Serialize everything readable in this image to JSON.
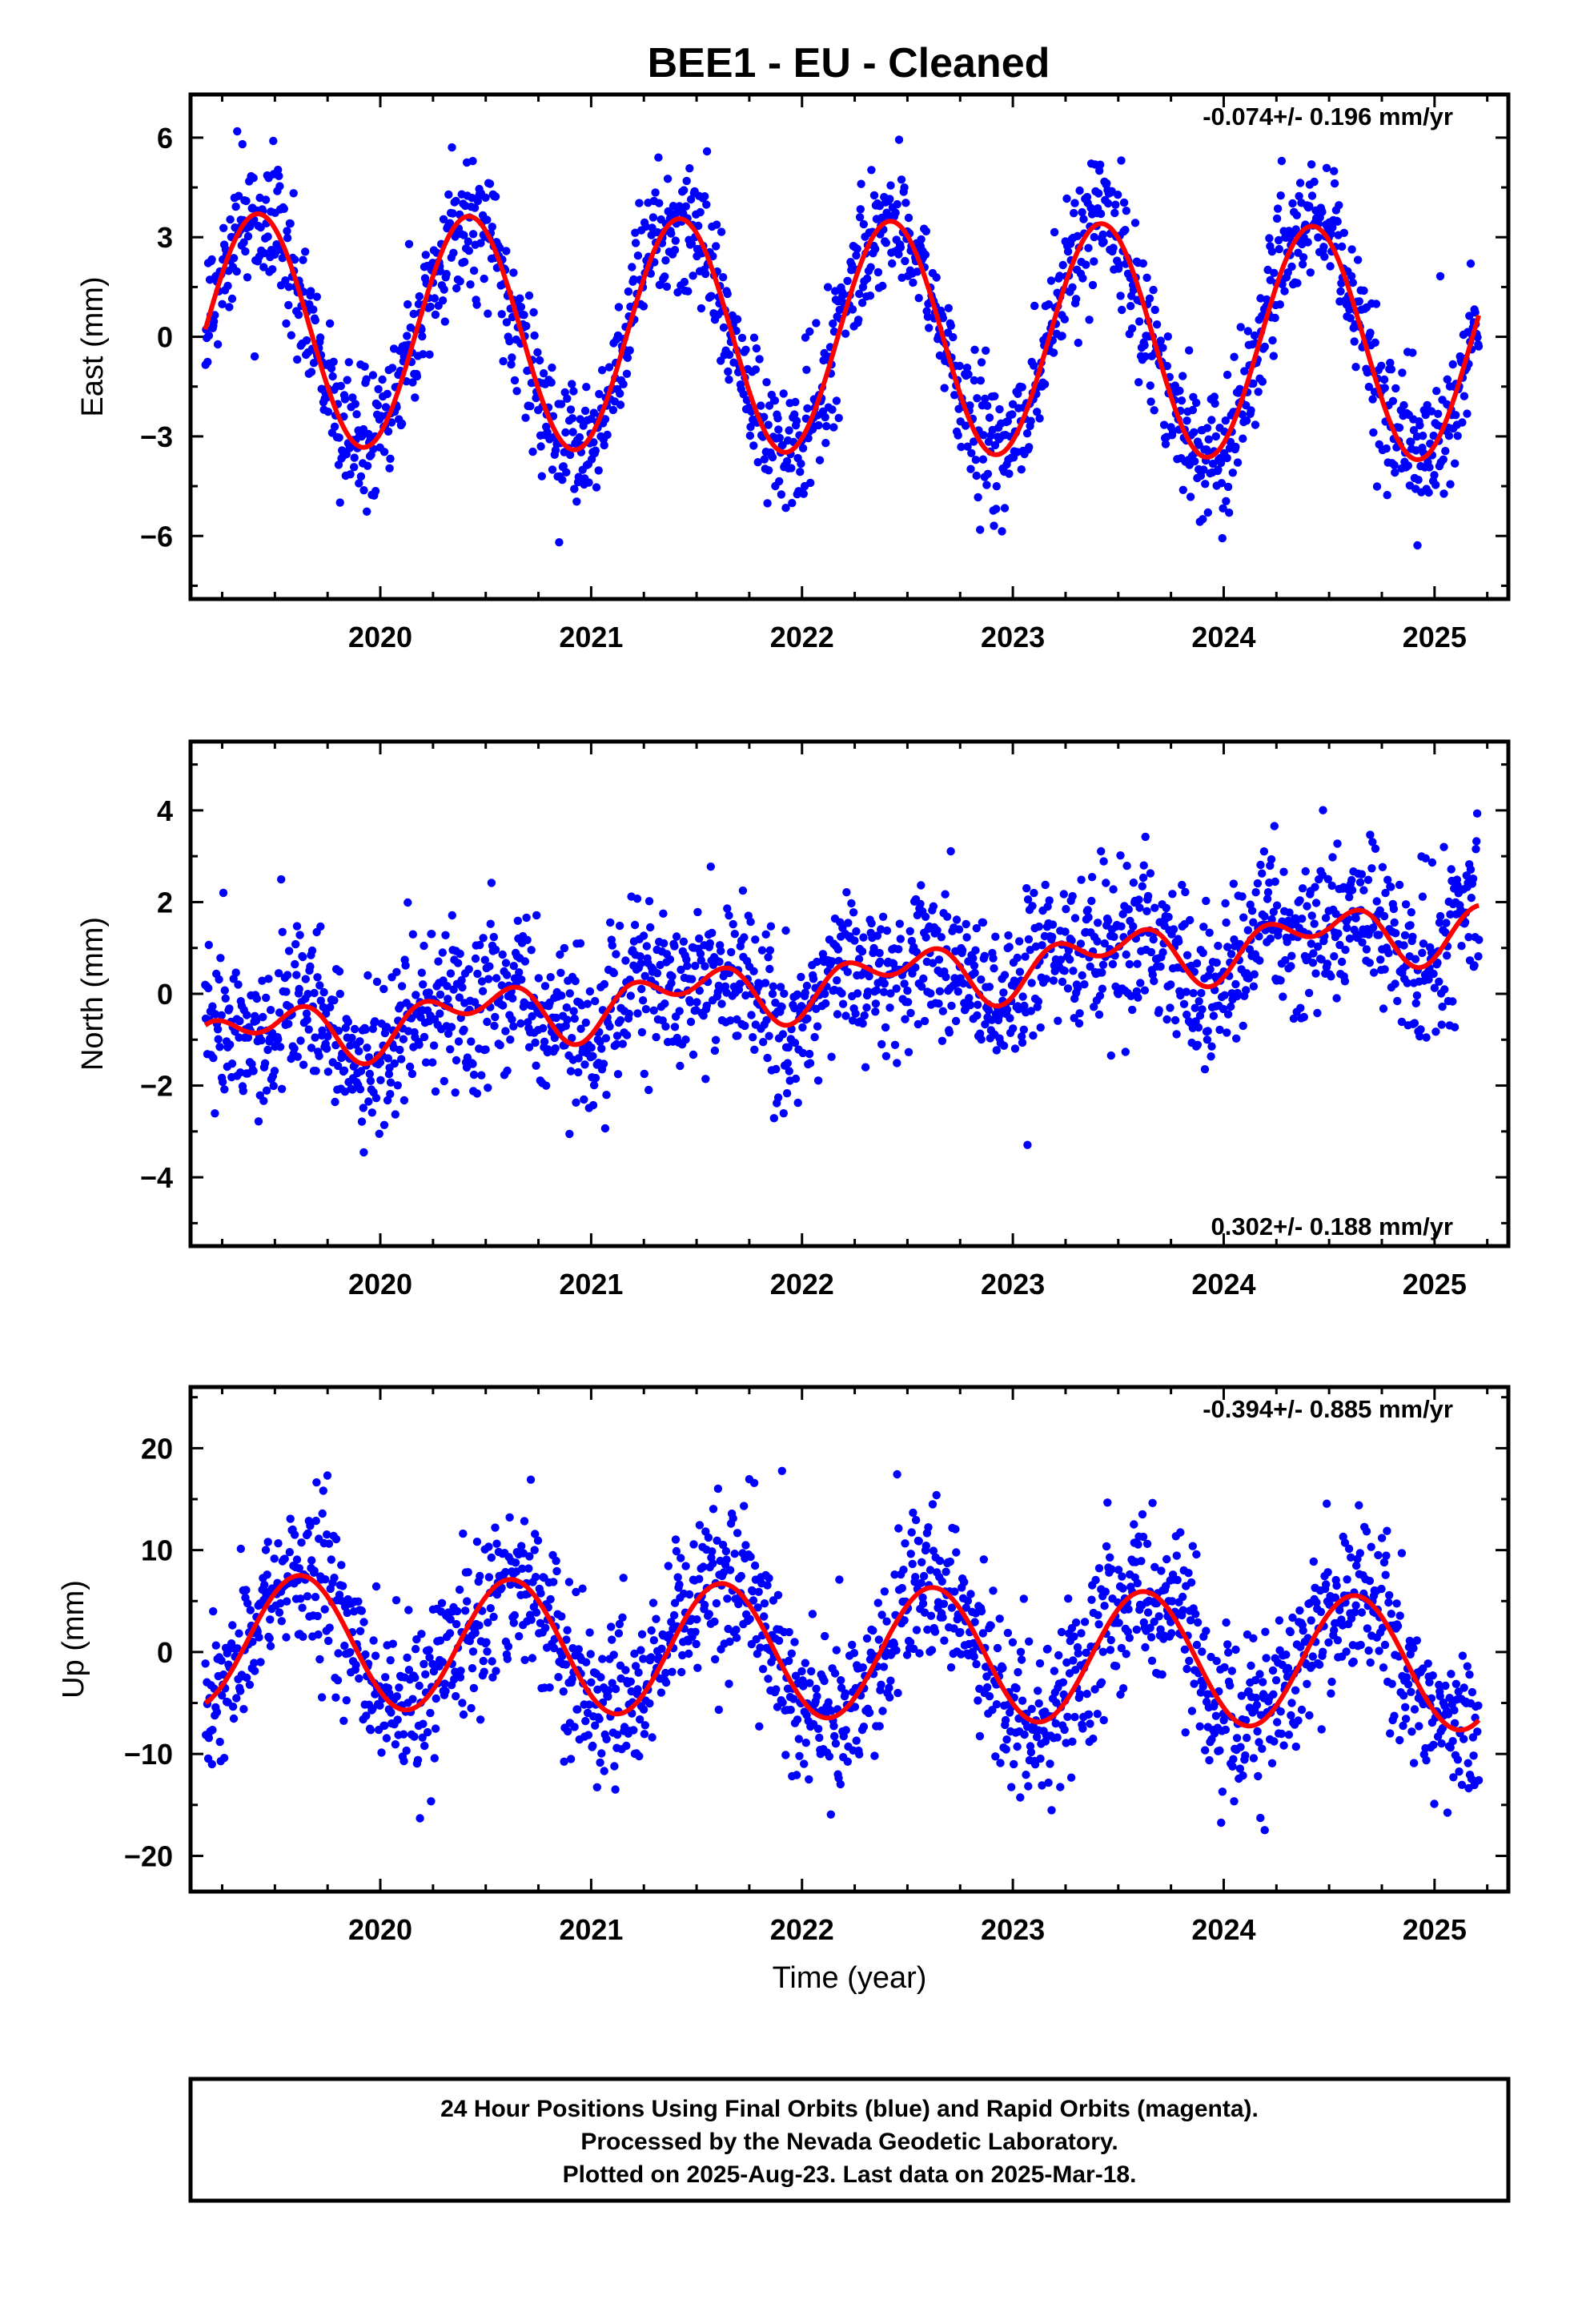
{
  "title": "BEE1  - EU - Cleaned",
  "chart_data": [
    {
      "type": "scatter",
      "ylabel": "East (mm)",
      "xlabel": "",
      "xlim": [
        2019.1,
        2025.35
      ],
      "ylim": [
        -7.9,
        7.3
      ],
      "y_ticks": [
        -6,
        -3,
        0,
        3,
        6
      ],
      "y_tick_labels": [
        "−6",
        "−3",
        "0",
        "3",
        "6"
      ],
      "x_ticks": [
        2020,
        2021,
        2022,
        2023,
        2024,
        2025
      ],
      "x_tick_labels": [
        "2020",
        "2021",
        "2022",
        "2023",
        "2024",
        "2025"
      ],
      "rate_text": "-0.074+/- 0.196 mm/yr",
      "rate_position": "top-right",
      "data_start": 2019.17,
      "data_end": 2025.21,
      "velocity_mm_per_yr": -0.074,
      "series": [
        {
          "name": "",
          "kind": "points",
          "color": "#0000ff",
          "seasonal_amplitude": 3.5,
          "peak_phase": 0.42,
          "noise_sd": 1.0
        },
        {
          "name": "",
          "kind": "fit",
          "color": "#ff0000",
          "amplitude": 3.5,
          "peak_phase": 0.42
        }
      ]
    },
    {
      "type": "scatter",
      "ylabel": "North (mm)",
      "xlabel": "",
      "xlim": [
        2019.1,
        2025.35
      ],
      "ylim": [
        -5.5,
        5.5
      ],
      "y_ticks": [
        -4,
        -2,
        0,
        2,
        4
      ],
      "y_tick_labels": [
        "−4",
        "−2",
        "0",
        "2",
        "4"
      ],
      "x_ticks": [
        2020,
        2021,
        2022,
        2023,
        2024,
        2025
      ],
      "x_tick_labels": [
        "2020",
        "2021",
        "2022",
        "2023",
        "2024",
        "2025"
      ],
      "rate_text": "0.302+/- 0.188 mm/yr",
      "rate_position": "bottom-right",
      "data_start": 2019.17,
      "data_end": 2025.21,
      "velocity_mm_per_yr": 0.302,
      "series": [
        {
          "name": "",
          "kind": "points",
          "color": "#0000ff",
          "offset": -1.0,
          "seasonal_amplitude": 0.45,
          "semiannual_amplitude": 0.4,
          "noise_sd": 0.85
        },
        {
          "name": "",
          "kind": "fit",
          "color": "#ff0000",
          "offset": -1.0,
          "amplitude": 0.45,
          "semiannual_amplitude": 0.4
        }
      ]
    },
    {
      "type": "scatter",
      "ylabel": "Up (mm)",
      "xlabel": "Time (year)",
      "xlim": [
        2019.1,
        2025.35
      ],
      "ylim": [
        -23.5,
        26
      ],
      "y_ticks": [
        -20,
        -10,
        0,
        10,
        20
      ],
      "y_tick_labels": [
        "−20",
        "−10",
        "0",
        "10",
        "20"
      ],
      "x_ticks": [
        2020,
        2021,
        2022,
        2023,
        2024,
        2025
      ],
      "x_tick_labels": [
        "2020",
        "2021",
        "2022",
        "2023",
        "2024",
        "2025"
      ],
      "rate_text": "-0.394+/- 0.885 mm/yr",
      "rate_position": "top-right",
      "data_start": 2019.17,
      "data_end": 2025.21,
      "velocity_mm_per_yr": -0.394,
      "series": [
        {
          "name": "",
          "kind": "points",
          "color": "#0000ff",
          "seasonal_amplitude": 6.5,
          "peak_phase": 0.62,
          "noise_sd": 4.0
        },
        {
          "name": "",
          "kind": "fit",
          "color": "#ff0000",
          "amplitude": 6.5,
          "peak_phase": 0.62
        }
      ]
    }
  ],
  "footer": {
    "line1": "24 Hour Positions Using Final Orbits (blue) and Rapid Orbits (magenta).",
    "line2": "Processed by the Nevada Geodetic Laboratory.",
    "line3": "Plotted on 2025-Aug-23. Last data on 2025-Mar-18."
  }
}
